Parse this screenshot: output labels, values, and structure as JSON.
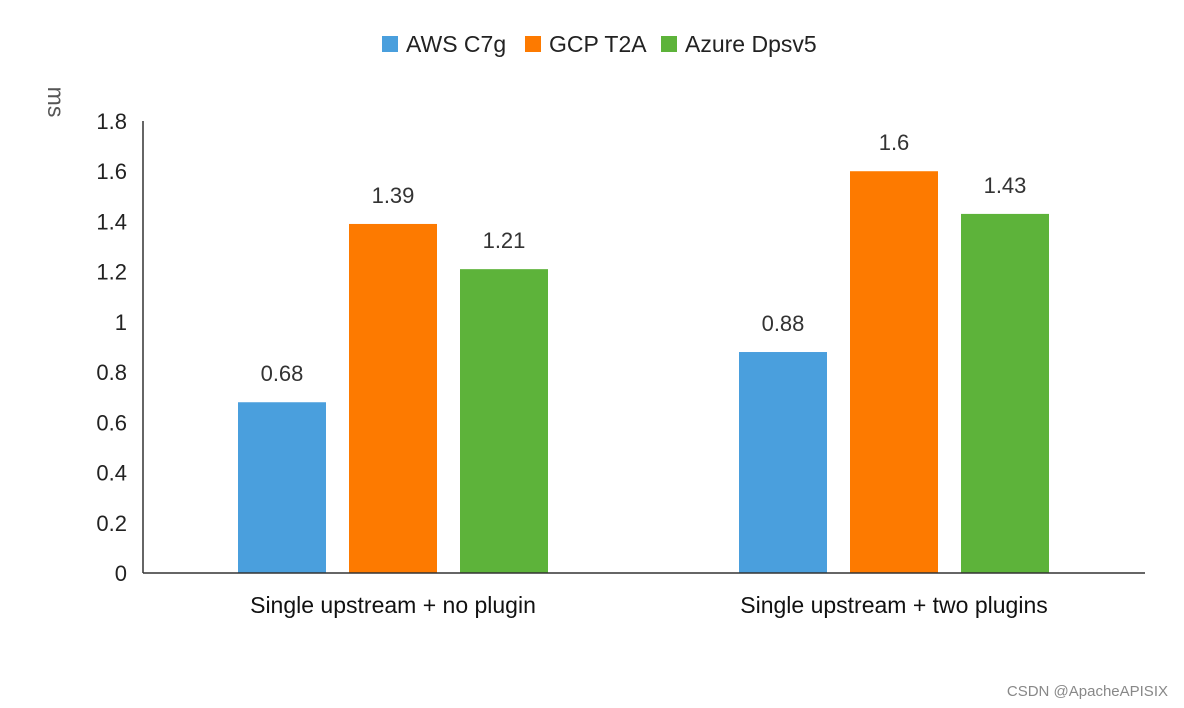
{
  "chart_data": {
    "type": "bar",
    "title": "",
    "xlabel": "",
    "ylabel": "ms",
    "ylim": [
      0,
      1.8
    ],
    "yticks": [
      "0",
      "0.2",
      "0.4",
      "0.6",
      "0.8",
      "1",
      "1.2",
      "1.4",
      "1.6",
      "1.8"
    ],
    "ytick_values": [
      0,
      0.2,
      0.4,
      0.6,
      0.8,
      1,
      1.2,
      1.4,
      1.6,
      1.8
    ],
    "categories": [
      "Single upstream  + no plugin",
      "Single upstream + two plugins"
    ],
    "series": [
      {
        "name": "AWS C7g",
        "color": "#4a9fdd",
        "values": [
          0.68,
          0.88
        ],
        "labels": [
          "0.68",
          "0.88"
        ]
      },
      {
        "name": "GCP T2A",
        "color": "#fd7a00",
        "values": [
          1.39,
          1.6
        ],
        "labels": [
          "1.39",
          "1.6"
        ]
      },
      {
        "name": "Azure Dpsv5",
        "color": "#5db33a",
        "values": [
          1.21,
          1.43
        ],
        "labels": [
          "1.21",
          "1.43"
        ]
      }
    ],
    "legend_position": "top-center",
    "grid": false
  },
  "watermark": "CSDN @ApacheAPISIX"
}
